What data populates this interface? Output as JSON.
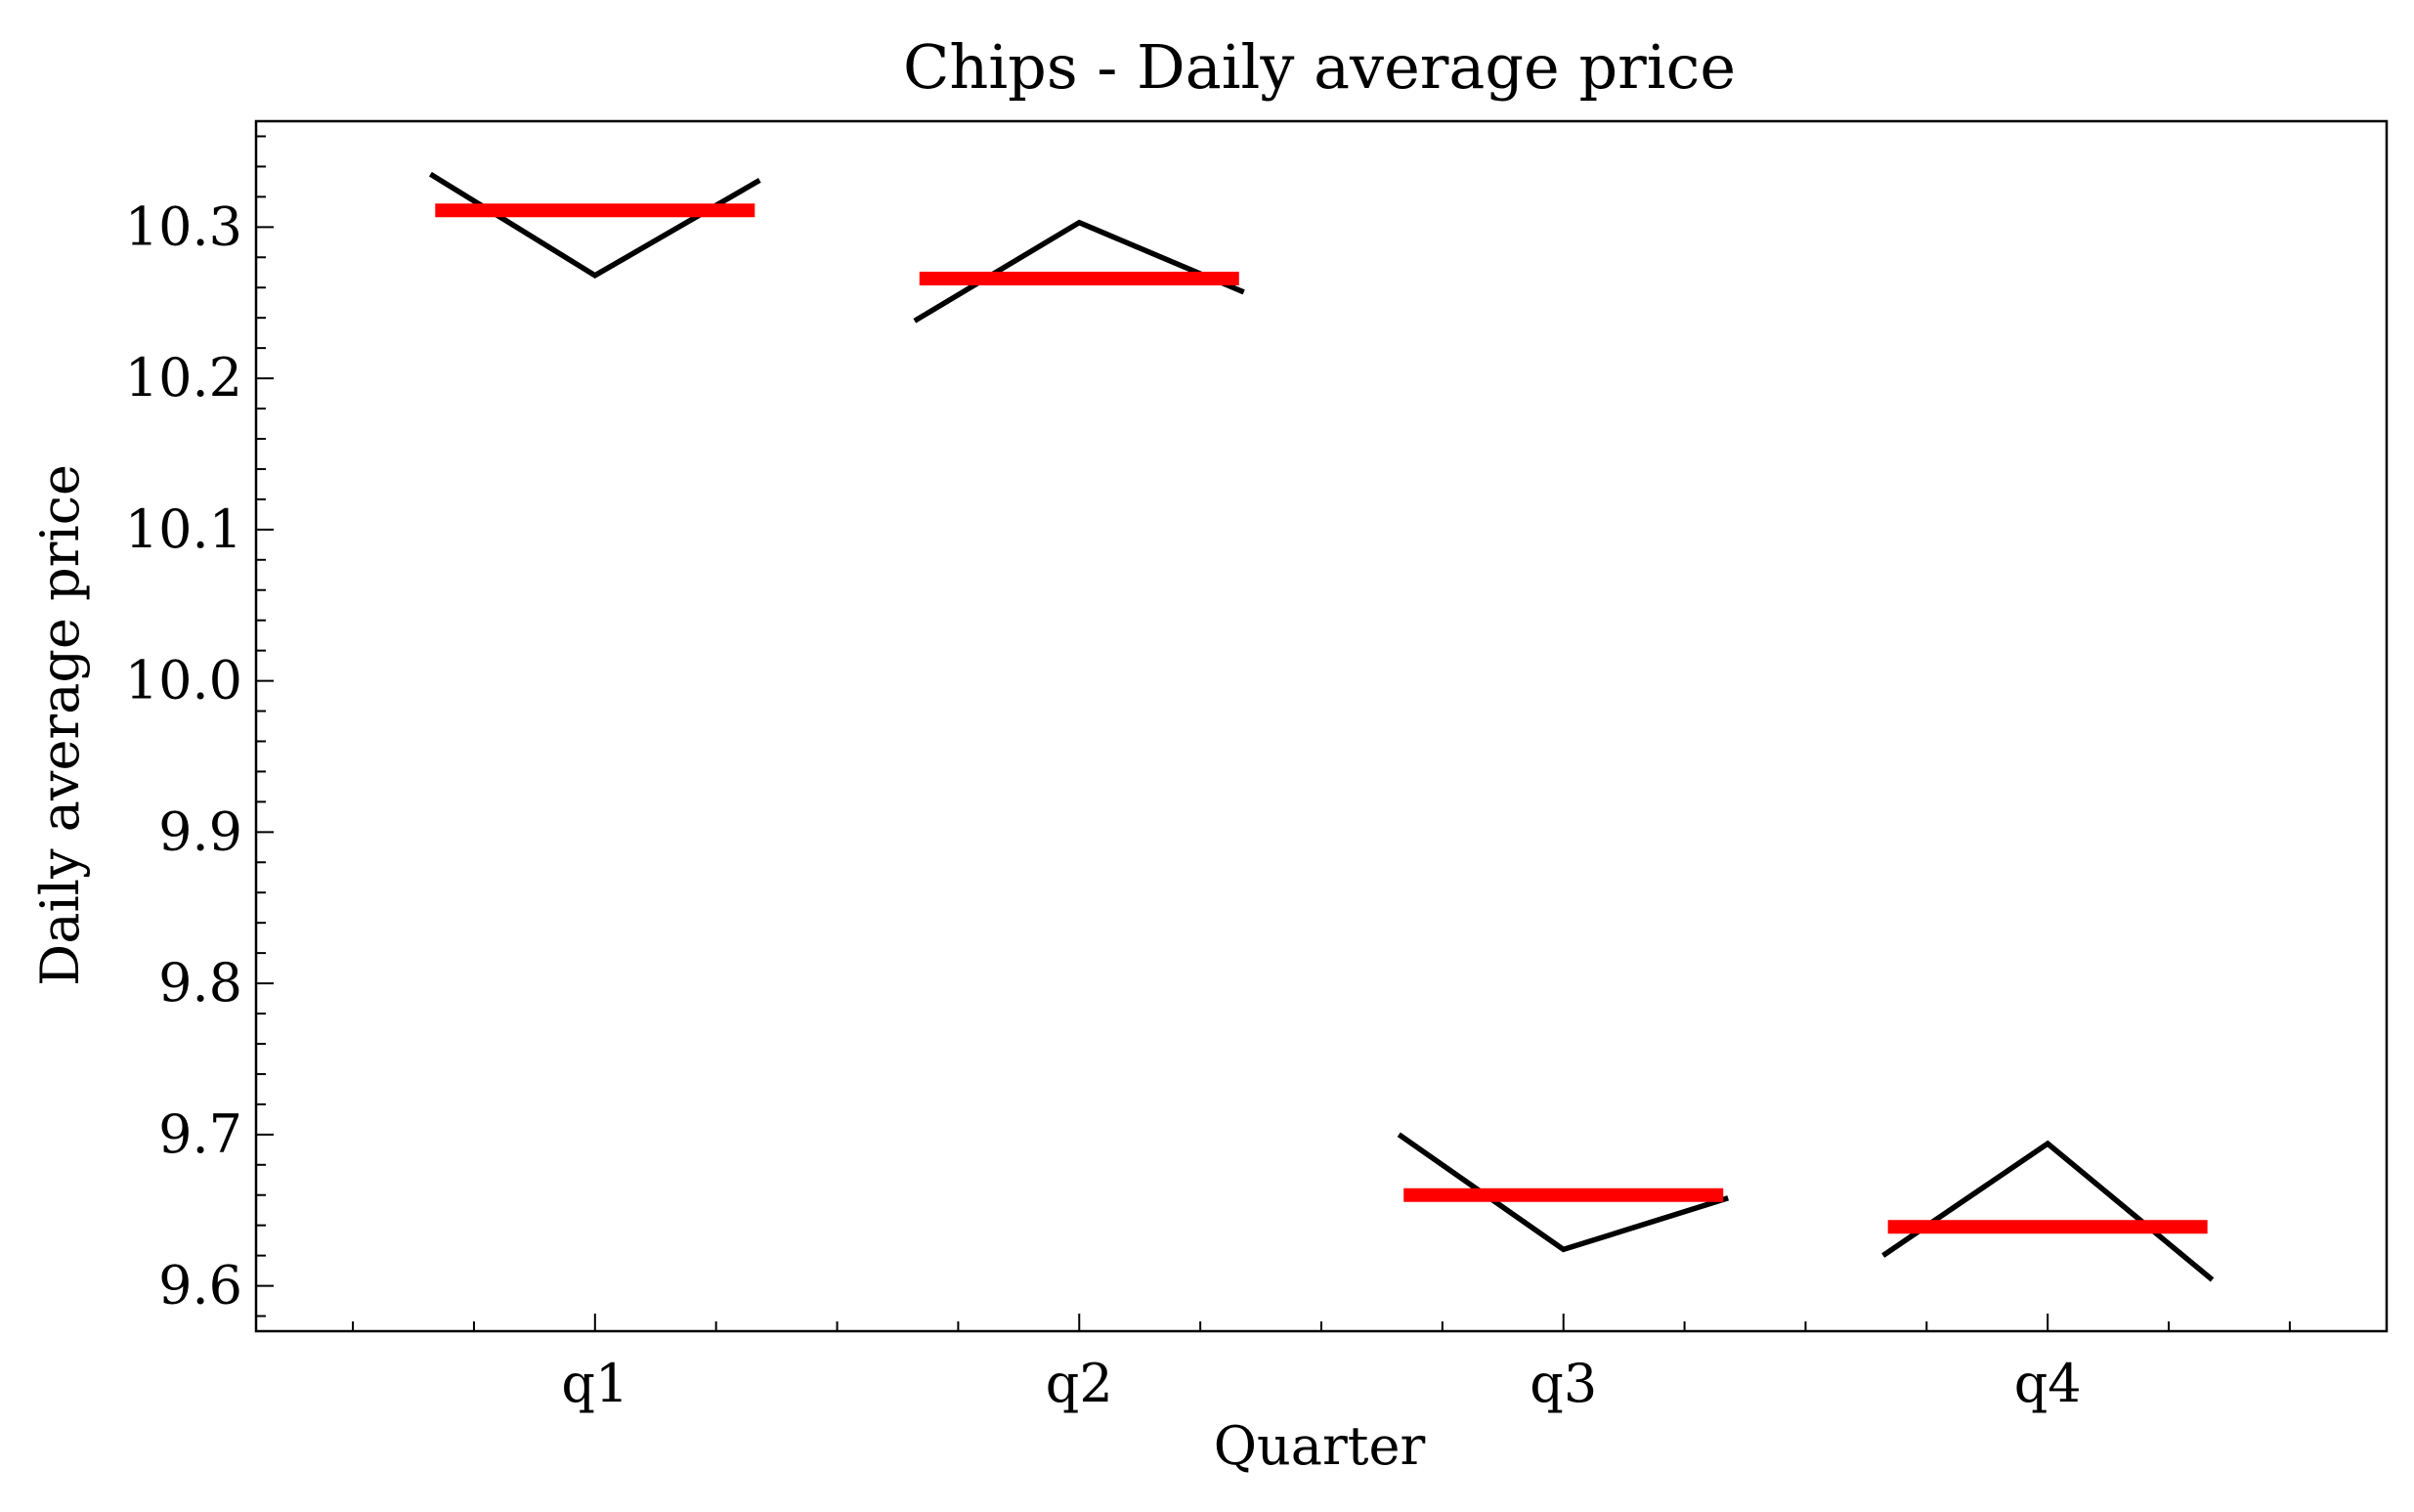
{
  "chart_data": {
    "type": "line",
    "title": "Chips - Daily average price",
    "xlabel": "Quarter",
    "ylabel": "Daily average price",
    "categories": [
      "q1",
      "q2",
      "q3",
      "q4"
    ],
    "ylim": [
      9.57,
      10.37
    ],
    "yticks": [
      "9.6",
      "9.7",
      "9.8",
      "9.9",
      "10.0",
      "10.1",
      "10.2",
      "10.3"
    ],
    "grid": false,
    "month_lines": [
      [
        10.335,
        10.268,
        10.331
      ],
      [
        10.238,
        10.303,
        10.257
      ],
      [
        9.7,
        9.624,
        9.658
      ],
      [
        9.62,
        9.694,
        9.604
      ]
    ],
    "quarter_means": [
      10.311,
      10.266,
      9.66,
      9.639
    ],
    "colors": {
      "month_line": "#000000",
      "mean": "#ff0000"
    }
  }
}
